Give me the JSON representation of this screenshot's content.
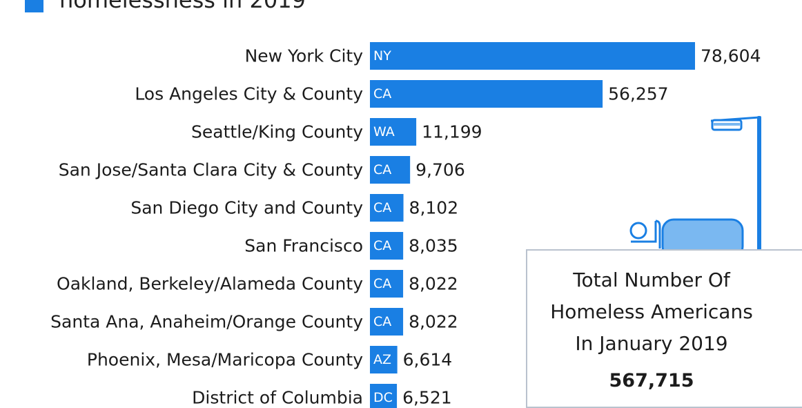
{
  "header": {
    "title_fragment": "homelessness in 2019"
  },
  "colors": {
    "bar": "#1a7fe3",
    "illustration_fill": "#7ab8f1",
    "illustration_stroke": "#1a7fe3",
    "box_border": "#b9c2ce"
  },
  "chart_data": {
    "type": "bar",
    "orientation": "horizontal",
    "title": "homelessness in 2019",
    "categories": [
      "New York City",
      "Los Angeles City & County",
      "Seattle/King County",
      "San Jose/Santa Clara City & County",
      "San Diego City and County",
      "San Francisco",
      "Oakland, Berkeley/Alameda County",
      "Santa Ana, Anaheim/Orange County",
      "Phoenix, Mesa/Maricopa County",
      "District of Columbia"
    ],
    "states": [
      "NY",
      "CA",
      "WA",
      "CA",
      "CA",
      "CA",
      "CA",
      "CA",
      "AZ",
      "DC"
    ],
    "values": [
      78604,
      56257,
      11199,
      9706,
      8102,
      8035,
      8022,
      8022,
      6614,
      6521
    ],
    "value_labels": [
      "78,604",
      "56,257",
      "11,199",
      "9,706",
      "8,102",
      "8,035",
      "8,022",
      "8,022",
      "6,614",
      "6,521"
    ],
    "xlim": [
      0,
      80000
    ],
    "grid": false,
    "legend": "top-left"
  },
  "info_box": {
    "heading_lines": [
      "Total Number Of",
      "Homeless Americans",
      "In January 2019"
    ],
    "value": "567,715"
  },
  "illustration": {
    "icon": "person-sleeping-on-bench-under-streetlight-icon"
  }
}
